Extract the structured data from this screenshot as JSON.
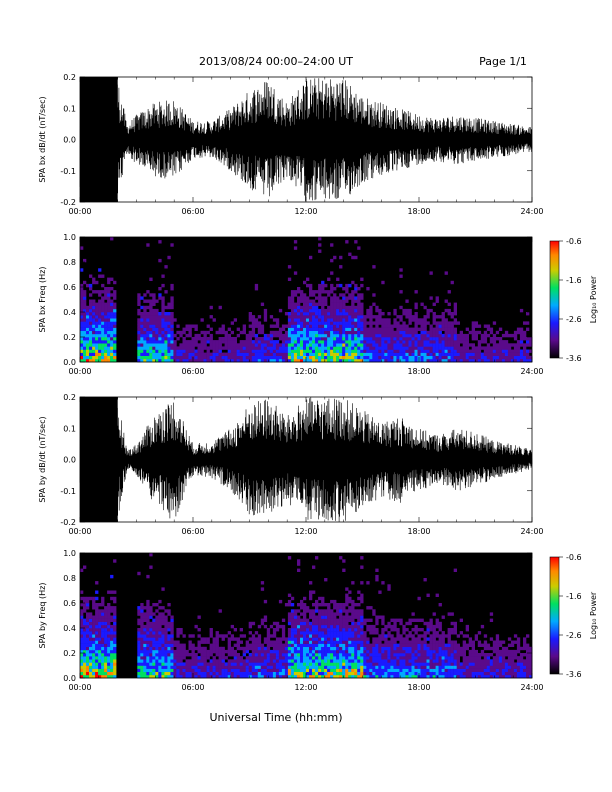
{
  "header": {
    "date_range": "2013/08/24  00:00–24:00 UT",
    "page": "Page 1/1"
  },
  "footer": {
    "xlabel": "Universal Time (hh:mm)"
  },
  "colors": {
    "trace": "#000000",
    "spectrogram_bg": "#000000",
    "colormap": [
      "#000000",
      "#5a0a8a",
      "#1a1aff",
      "#00aaff",
      "#00e060",
      "#cccc00",
      "#ff8800",
      "#ff0000"
    ]
  },
  "chart_data": [
    {
      "type": "line",
      "id": "bx_wave",
      "ylabel": "SPA bx dB/dt (nT/sec)",
      "xlim": [
        0,
        24
      ],
      "ylim": [
        -0.2,
        0.2
      ],
      "x_ticks": [
        "00:00",
        "06:00",
        "12:00",
        "18:00",
        "24:00"
      ],
      "y_ticks": [
        "-0.2",
        "-0.1",
        "0.0",
        "0.1",
        "0.2"
      ],
      "series": [
        {
          "x": [
            0,
            1,
            2,
            2.5,
            3,
            4,
            5,
            6,
            7,
            8,
            9,
            10,
            11,
            12,
            13,
            14,
            15,
            16,
            17,
            18,
            19,
            20,
            21,
            22,
            23,
            24
          ],
          "values": [
            0.2,
            0.2,
            0.2,
            0.05,
            0.08,
            0.12,
            0.13,
            0.06,
            0.06,
            0.1,
            0.16,
            0.2,
            0.12,
            0.2,
            0.2,
            0.2,
            0.14,
            0.12,
            0.1,
            0.08,
            0.07,
            0.08,
            0.07,
            0.06,
            0.05,
            0.04
          ]
        }
      ]
    },
    {
      "type": "heatmap",
      "id": "bx_freq",
      "ylabel": "SPA bx Freq (Hz)",
      "xlim": [
        0,
        24
      ],
      "ylim": [
        0,
        1.0
      ],
      "x_ticks": [
        "00:00",
        "06:00",
        "12:00",
        "18:00",
        "24:00"
      ],
      "y_ticks": [
        "0.0",
        "0.2",
        "0.4",
        "0.6",
        "0.8",
        "1.0"
      ],
      "colorbar": {
        "label": "Log₁₀ Power",
        "range": [
          -3.6,
          -0.6
        ],
        "ticks": [
          "-0.6",
          "-1.6",
          "-2.6",
          "-3.6"
        ]
      },
      "activity": [
        {
          "start": 0,
          "end": 2,
          "level": 0.8
        },
        {
          "start": 2,
          "end": 3,
          "level": 0.05
        },
        {
          "start": 3,
          "end": 5,
          "level": 0.6
        },
        {
          "start": 5,
          "end": 9,
          "level": 0.25
        },
        {
          "start": 9,
          "end": 11,
          "level": 0.35
        },
        {
          "start": 11,
          "end": 15,
          "level": 0.75
        },
        {
          "start": 15,
          "end": 20,
          "level": 0.4
        },
        {
          "start": 20,
          "end": 24,
          "level": 0.25
        }
      ]
    },
    {
      "type": "line",
      "id": "by_wave",
      "ylabel": "SPA by dB/dt (nT/sec)",
      "xlim": [
        0,
        24
      ],
      "ylim": [
        -0.2,
        0.2
      ],
      "x_ticks": [
        "00:00",
        "06:00",
        "12:00",
        "18:00",
        "24:00"
      ],
      "y_ticks": [
        "-0.2",
        "-0.1",
        "0.0",
        "0.1",
        "0.2"
      ],
      "series": [
        {
          "x": [
            0,
            1,
            2,
            2.5,
            3,
            4,
            5,
            6,
            7,
            8,
            9,
            10,
            11,
            12,
            13,
            14,
            15,
            16,
            17,
            18,
            19,
            20,
            21,
            22,
            23,
            24
          ],
          "values": [
            0.2,
            0.2,
            0.2,
            0.03,
            0.05,
            0.15,
            0.2,
            0.05,
            0.06,
            0.1,
            0.18,
            0.2,
            0.14,
            0.2,
            0.2,
            0.2,
            0.16,
            0.12,
            0.14,
            0.1,
            0.08,
            0.1,
            0.09,
            0.06,
            0.05,
            0.03
          ]
        }
      ]
    },
    {
      "type": "heatmap",
      "id": "by_freq",
      "ylabel": "SPA by Freq (Hz)",
      "xlim": [
        0,
        24
      ],
      "ylim": [
        0,
        1.0
      ],
      "x_ticks": [
        "00:00",
        "06:00",
        "12:00",
        "18:00",
        "24:00"
      ],
      "y_ticks": [
        "0.0",
        "0.2",
        "0.4",
        "0.6",
        "0.8",
        "1.0"
      ],
      "colorbar": {
        "label": "Log₁₀ Power",
        "range": [
          -3.6,
          -0.6
        ],
        "ticks": [
          "-0.6",
          "-1.6",
          "-2.6",
          "-3.6"
        ]
      },
      "activity": [
        {
          "start": 0,
          "end": 2,
          "level": 0.85
        },
        {
          "start": 2,
          "end": 3,
          "level": 0.05
        },
        {
          "start": 3,
          "end": 5,
          "level": 0.65
        },
        {
          "start": 5,
          "end": 9,
          "level": 0.3
        },
        {
          "start": 9,
          "end": 11,
          "level": 0.4
        },
        {
          "start": 11,
          "end": 15,
          "level": 0.8
        },
        {
          "start": 15,
          "end": 20,
          "level": 0.45
        },
        {
          "start": 20,
          "end": 24,
          "level": 0.3
        }
      ]
    }
  ]
}
